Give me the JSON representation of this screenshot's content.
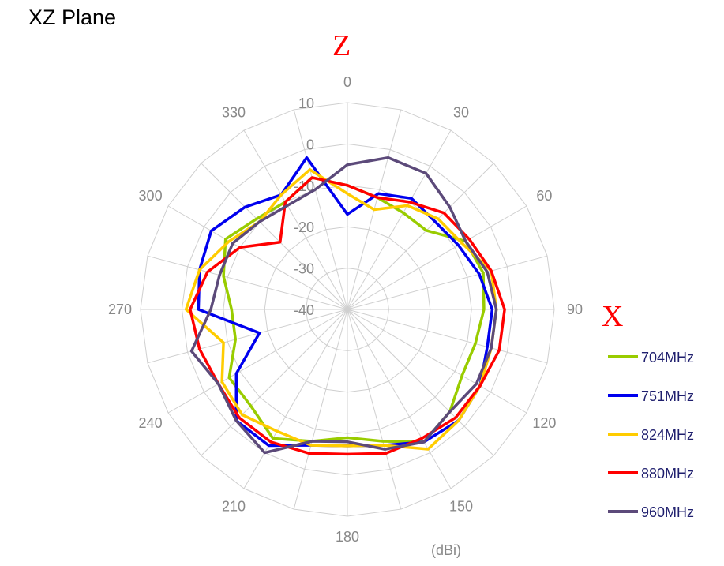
{
  "title": "XZ Plane",
  "axis_letters": {
    "z": "Z",
    "x": "X"
  },
  "unit_label": "(dBi)",
  "chart_data": {
    "type": "polar-line",
    "title": "XZ Plane",
    "r_range": [
      -40,
      10
    ],
    "r_ticks": [
      10,
      0,
      -10,
      -20,
      -30,
      -40
    ],
    "angle_step_deg": 15,
    "angle_labels": [
      {
        "angle": 0,
        "text": "0"
      },
      {
        "angle": 30,
        "text": "30"
      },
      {
        "angle": 60,
        "text": "60"
      },
      {
        "angle": 90,
        "text": "90"
      },
      {
        "angle": 120,
        "text": "120"
      },
      {
        "angle": 150,
        "text": "150"
      },
      {
        "angle": 180,
        "text": "180"
      },
      {
        "angle": 210,
        "text": "210"
      },
      {
        "angle": 240,
        "text": "240"
      },
      {
        "angle": 270,
        "text": "270"
      },
      {
        "angle": 300,
        "text": "300"
      },
      {
        "angle": 330,
        "text": "330"
      }
    ],
    "grid": true,
    "legend": "right",
    "angles": [
      0,
      15,
      30,
      45,
      60,
      75,
      90,
      105,
      120,
      135,
      150,
      165,
      180,
      195,
      210,
      225,
      240,
      255,
      270,
      285,
      300,
      315,
      330,
      345
    ],
    "series": [
      {
        "name": "704MHz",
        "color": "#99cc00",
        "values": [
          -10,
          -12,
          -13,
          -13,
          -7,
          -6,
          -7,
          -8,
          -8,
          -5,
          -3,
          -7,
          -9,
          -7,
          -4,
          -7,
          -7,
          -12,
          -12,
          -9,
          -6,
          -9,
          -10,
          -7
        ]
      },
      {
        "name": "751MHz",
        "color": "#0000ee",
        "values": [
          -17,
          -11,
          -9,
          -10,
          -9,
          -7,
          -5,
          -5,
          -3,
          -2,
          -3,
          -6,
          -7,
          -6,
          -2,
          -2,
          -9,
          -18,
          -4,
          -3,
          -2,
          -5,
          -8,
          -2
        ]
      },
      {
        "name": "824MHz",
        "color": "#ffcc00",
        "values": [
          -12,
          -15,
          -11,
          -9,
          -8,
          -4,
          -4,
          -4,
          -3,
          -2,
          -1,
          -6,
          -7,
          -6,
          -6,
          -4,
          -5,
          -9,
          -1,
          -3,
          -7,
          -10,
          -8,
          -5
        ]
      },
      {
        "name": "880MHz",
        "color": "#ff0000",
        "values": [
          -10,
          -12,
          -10,
          -7,
          -6,
          -4,
          -2,
          -2,
          -3,
          -3,
          -4,
          -4,
          -5,
          -4,
          -3,
          -3,
          -4,
          -3,
          -2,
          -5,
          -10,
          -17,
          -10,
          -7
        ]
      },
      {
        "name": "960MHz",
        "color": "#5c4a7a",
        "values": [
          -5,
          -2,
          -2,
          -5,
          -7,
          -5,
          -4,
          -4,
          -4,
          -5,
          -3,
          -5,
          -8,
          -7,
          0,
          -2,
          -4,
          -1,
          -7,
          -8,
          -8,
          -10,
          -11,
          -10
        ]
      }
    ]
  }
}
